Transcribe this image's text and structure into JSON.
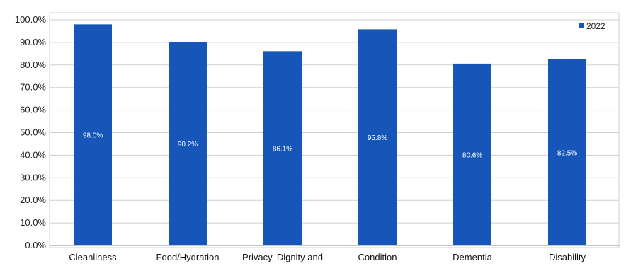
{
  "chart_data": {
    "type": "bar",
    "categories": [
      "Cleanliness",
      "Food/Hydration",
      "Privacy, Dignity and",
      "Condition",
      "Dementia",
      "Disability"
    ],
    "series": [
      {
        "name": "2022",
        "values": [
          98.0,
          90.2,
          86.1,
          95.8,
          80.6,
          82.5
        ],
        "labels": [
          "98.0%",
          "90.2%",
          "86.1%",
          "95.8%",
          "80.6%",
          "82.5%"
        ]
      }
    ],
    "ylim": [
      0,
      100
    ],
    "ytick_labels": [
      "0.0%",
      "10.0%",
      "20.0%",
      "30.0%",
      "40.0%",
      "50.0%",
      "60.0%",
      "70.0%",
      "80.0%",
      "90.0%",
      "100.0%"
    ],
    "grid": true,
    "legend": "top-right",
    "colors": {
      "bar": "#1556b8",
      "grid": "#cfcfcf"
    }
  }
}
